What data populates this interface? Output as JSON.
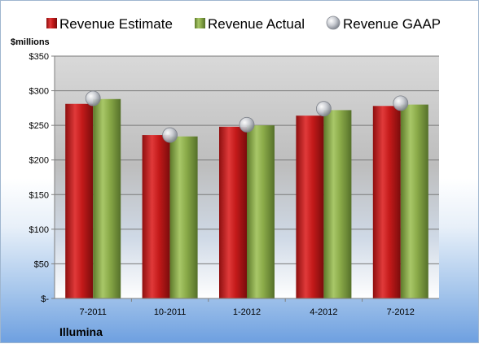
{
  "chart_data": {
    "type": "bar",
    "unit_label": "$millions",
    "company": "Illumina",
    "categories": [
      "7-2011",
      "10-2011",
      "1-2012",
      "4-2012",
      "7-2012"
    ],
    "series": [
      {
        "name": "Revenue Estimate",
        "kind": "bar",
        "color": "#d42020",
        "values": [
          281,
          236,
          248,
          264,
          278
        ]
      },
      {
        "name": "Revenue Actual",
        "kind": "bar",
        "color": "#8fae4c",
        "values": [
          288,
          234,
          250,
          272,
          280
        ]
      },
      {
        "name": "Revenue GAAP",
        "kind": "marker",
        "color": "#b8bcc4",
        "values": [
          289,
          236,
          251,
          274,
          282
        ]
      }
    ],
    "ylim": [
      0,
      350
    ],
    "yticks": [
      0,
      50,
      100,
      150,
      200,
      250,
      300,
      350
    ],
    "ytick_labels": [
      "$-",
      "$50",
      "$100",
      "$150",
      "$200",
      "$250",
      "$300",
      "$350"
    ],
    "grid": true,
    "legend_position": "top"
  }
}
